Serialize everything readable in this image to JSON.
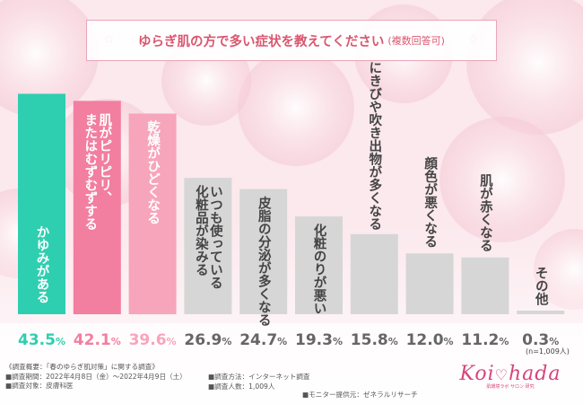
{
  "title": {
    "main": "ゆらぎ肌の方で多い症状を教えてください",
    "sub": "(複数回答可)"
  },
  "chart_data": {
    "type": "bar",
    "categories": [
      "かゆみがある",
      "肌がピリピリ、またはむずむずする",
      "乾燥がひどくなる",
      "いつも使っている化粧品が染みる",
      "皮脂の分泌が多くなる",
      "化粧のりが悪い",
      "にきびや吹き出物が多くなる",
      "顔色が悪くなる",
      "肌が赤くなる",
      "その他"
    ],
    "label_lines": [
      [
        "かゆみがある"
      ],
      [
        "肌がピリピリ、",
        "またはむずむずする"
      ],
      [
        "乾燥がひどくなる"
      ],
      [
        "いつも使っている",
        "化粧品が染みる"
      ],
      [
        "皮脂の分泌が多くなる"
      ],
      [
        "化粧のりが悪い"
      ],
      [
        "にきびや吹き出物が多くなる"
      ],
      [
        "顔色が悪くなる"
      ],
      [
        "肌が赤くなる"
      ],
      [
        "その他"
      ]
    ],
    "values": [
      43.5,
      42.1,
      39.6,
      26.9,
      24.7,
      19.3,
      15.8,
      12.0,
      11.2,
      0.3
    ],
    "value_labels": [
      "43.5",
      "42.1",
      "39.6",
      "26.9",
      "24.7",
      "19.3",
      "15.8",
      "12.0",
      "11.2",
      "0.3"
    ],
    "unit": "%",
    "ylim": [
      0,
      45
    ],
    "bar_colors": [
      "#2ecfb0",
      "#f27ea0",
      "#f7a5bb",
      "#d6d6d6",
      "#d6d6d6",
      "#d6d6d6",
      "#d6d6d6",
      "#d6d6d6",
      "#d6d6d6",
      "#d6d6d6"
    ],
    "value_colors": [
      "#2ecfb0",
      "#f27ea0",
      "#f7a5bb",
      "#666666",
      "#666666",
      "#666666",
      "#666666",
      "#666666",
      "#666666",
      "#666666"
    ],
    "inside_label_color": "#ffffff",
    "outside_label_color": "#444444",
    "n_note": "(n=1,009人)"
  },
  "footer": {
    "overview": "《調査概要：「春のゆらぎ肌対策」に関する調査》",
    "period": "■調査期間：2022年4月8日（金）～2022年4月9日（土）",
    "target": "■調査対象：皮膚科医",
    "method": "■調査方法：インターネット調査",
    "count": "■調査人数：1,009人",
    "monitor": "■モニター提供元：ゼネラルリサーチ"
  },
  "logo": {
    "text_left": "Koi",
    "text_right": "hada",
    "sub": "肌環境ラボ サロン 研究"
  },
  "colors": {
    "accent": "#d9576f",
    "logo": "#d6457b"
  }
}
